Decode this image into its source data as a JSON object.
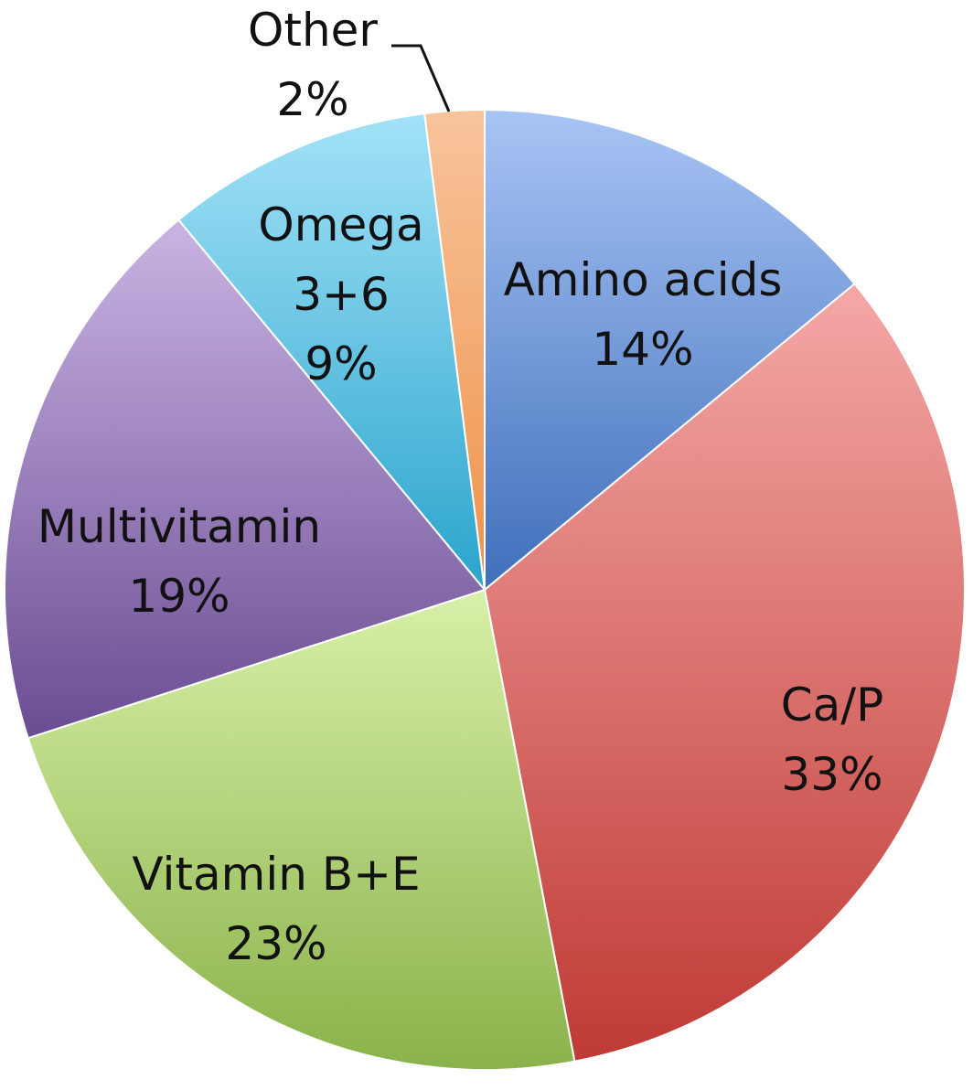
{
  "chart_data": {
    "type": "pie",
    "start_angle_deg": 0,
    "direction": "clockwise",
    "slices": [
      {
        "name": "Amino acids",
        "label_lines": [
          "Amino acids",
          "14%"
        ],
        "value": 14,
        "color_light": "#a8c4f5",
        "color_dark": "#3f6fba"
      },
      {
        "name": "Ca/P",
        "label_lines": [
          "Ca/P",
          "33%"
        ],
        "value": 33,
        "color_light": "#f4a8a6",
        "color_dark": "#bf3a35"
      },
      {
        "name": "Vitamin B+E",
        "label_lines": [
          "Vitamin B+E",
          "23%"
        ],
        "value": 23,
        "color_light": "#d8f0a8",
        "color_dark": "#8ab24a"
      },
      {
        "name": "Multivitamin",
        "label_lines": [
          "Multivitamin",
          "19%"
        ],
        "value": 19,
        "color_light": "#c9b4e3",
        "color_dark": "#6a4c93"
      },
      {
        "name": "Omega 3+6",
        "label_lines": [
          "Omega",
          "3+6",
          "9%"
        ],
        "value": 9,
        "color_light": "#a3e2f8",
        "color_dark": "#2aa4cc"
      },
      {
        "name": "Other",
        "label_lines": [
          "Other",
          "2%"
        ],
        "value": 2,
        "color_light": "#f8c49c",
        "color_dark": "#ee9248"
      }
    ],
    "legend": "none"
  }
}
